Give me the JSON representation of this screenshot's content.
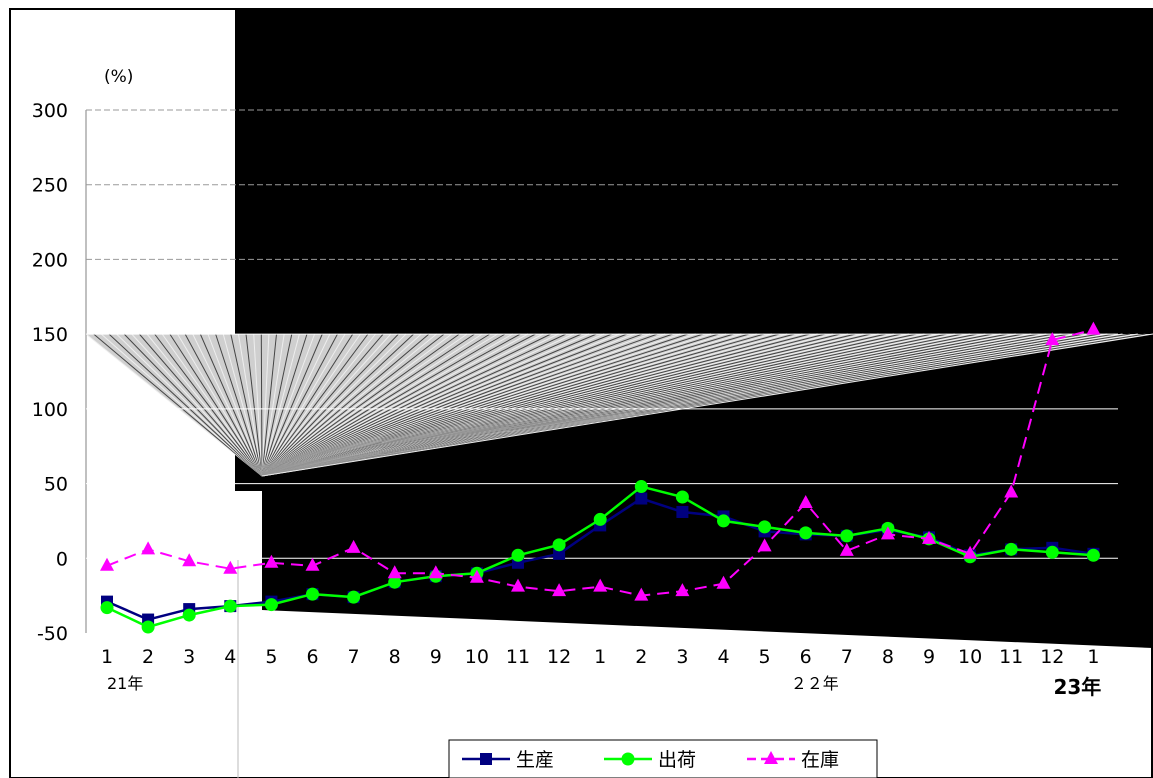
{
  "chart_data": {
    "type": "line",
    "ylabel": "(%)",
    "ylim": [
      -50,
      300
    ],
    "yticks": [
      "300",
      "250",
      "200",
      "150",
      "100",
      "50",
      "0",
      "-50"
    ],
    "categories": [
      "1",
      "2",
      "3",
      "4",
      "5",
      "6",
      "7",
      "8",
      "9",
      "10",
      "11",
      "12",
      "1",
      "2",
      "3",
      "4",
      "5",
      "6",
      "7",
      "8",
      "9",
      "10",
      "11",
      "12",
      "1"
    ],
    "year_labels": [
      {
        "text": "21年",
        "index": 0
      },
      {
        "text": "２２年",
        "index": 18
      },
      {
        "text": "23年",
        "index": 24
      }
    ],
    "series": [
      {
        "name": "生産",
        "color": "#000080",
        "marker": "square",
        "dash": "solid",
        "values": [
          -29,
          -41,
          -34,
          -32,
          -29,
          -24,
          -26,
          -16,
          -12,
          -10,
          -3,
          3,
          22,
          40,
          31,
          28,
          18,
          16,
          15,
          19,
          14,
          2,
          6,
          7,
          3
        ]
      },
      {
        "name": "出荷",
        "color": "#00ff00",
        "marker": "circle",
        "dash": "solid",
        "values": [
          -33,
          -46,
          -38,
          -32,
          -31,
          -24,
          -26,
          -16,
          -12,
          -10,
          2,
          9,
          26,
          48,
          41,
          25,
          21,
          17,
          15,
          20,
          13,
          1,
          6,
          4,
          2
        ]
      },
      {
        "name": "在庫",
        "color": "#ff00ff",
        "marker": "triangle",
        "dash": "dashed",
        "values": [
          -5,
          6,
          -2,
          -7,
          -3,
          -5,
          7,
          -10,
          -10,
          -13,
          -19,
          -22,
          -19,
          -25,
          -22,
          -17,
          8,
          37,
          5,
          16,
          13,
          3,
          44,
          146,
          153
        ]
      }
    ]
  }
}
